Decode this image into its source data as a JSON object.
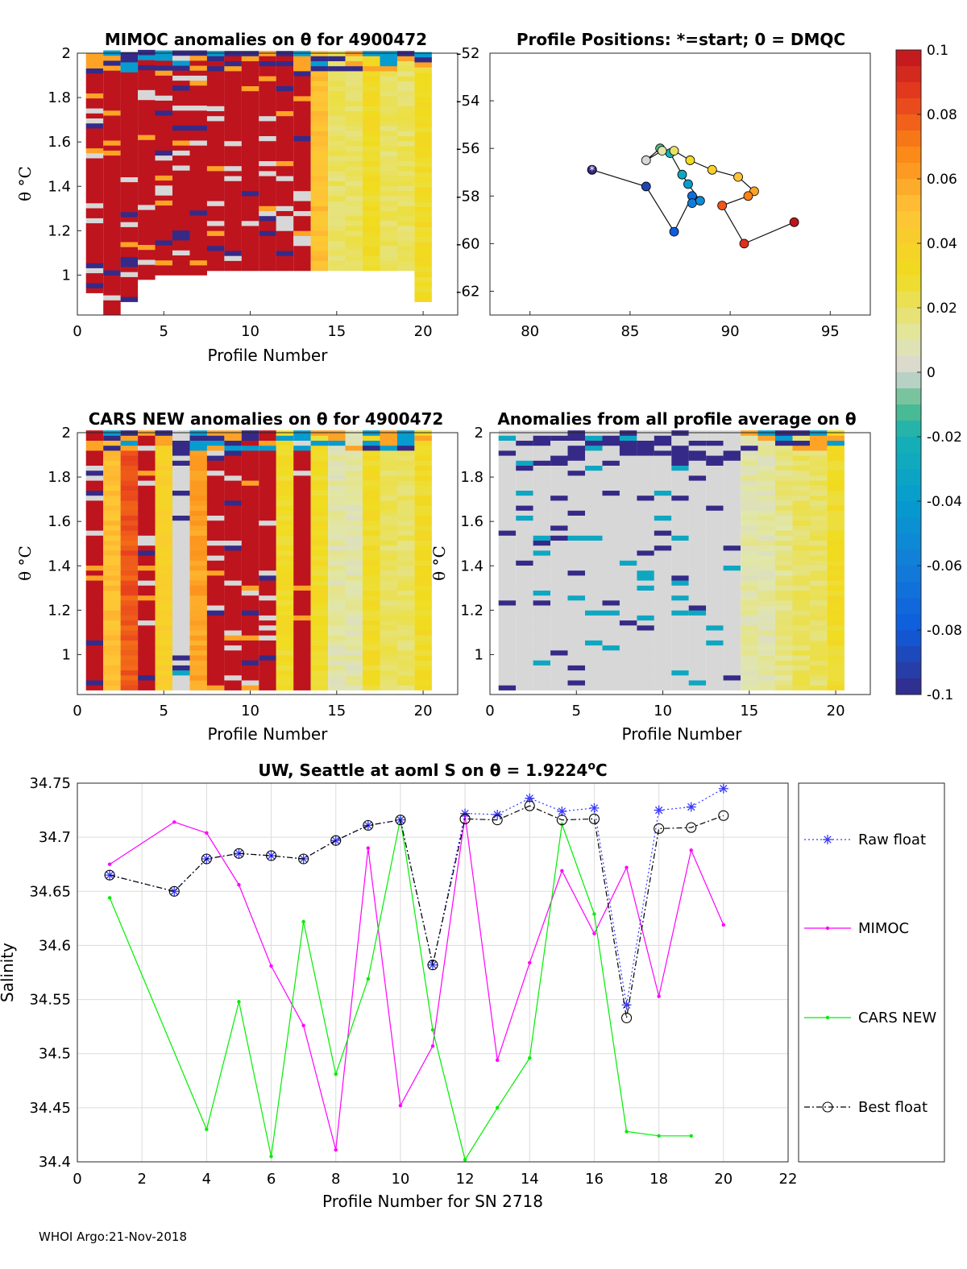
{
  "footer": "WHOI Argo:21-Nov-2018",
  "colorbar": {
    "ticks": [
      "0.1",
      "0.08",
      "0.06",
      "0.04",
      "0.02",
      "0",
      "-0.02",
      "-0.04",
      "-0.06",
      "-0.08",
      "-0.1"
    ],
    "range": [
      -0.1,
      0.1
    ]
  },
  "panels": {
    "mimoc": {
      "title": "MIMOC anomalies on θ  for 4900472",
      "xlabel": "Profile Number",
      "ylabel": "θ °C",
      "xticks": [
        "0",
        "5",
        "10",
        "15",
        "20"
      ],
      "yticks": [
        "1",
        "1.2",
        "1.4",
        "1.6",
        "1.8",
        "2"
      ],
      "xlim": [
        0,
        22
      ],
      "ylim": [
        0.82,
        2.0
      ]
    },
    "positions": {
      "title": "Profile Positions: *=start; 0 = DMQC",
      "xticks": [
        "80",
        "85",
        "90",
        "95"
      ],
      "yticks": [
        "-52",
        "-54",
        "-56",
        "-58",
        "-60",
        "-62"
      ],
      "xlim": [
        78,
        97
      ],
      "ylim": [
        -63,
        -52
      ]
    },
    "cars": {
      "title": "CARS NEW anomalies on θ for 4900472",
      "xlabel": "Profile Number",
      "ylabel": "θ °C",
      "xticks": [
        "0",
        "5",
        "10",
        "15",
        "20"
      ],
      "yticks": [
        "1",
        "1.2",
        "1.4",
        "1.6",
        "1.8",
        "2"
      ],
      "xlim": [
        0,
        22
      ],
      "ylim": [
        0.82,
        2.0
      ]
    },
    "allavg": {
      "title": "Anomalies from all profile average on θ",
      "xlabel": "Profile Number",
      "ylabel": "θ °C",
      "xticks": [
        "0",
        "5",
        "10",
        "15",
        "20"
      ],
      "yticks": [
        "1",
        "1.2",
        "1.4",
        "1.6",
        "1.8",
        "2"
      ],
      "xlim": [
        0,
        22
      ],
      "ylim": [
        0.82,
        2.0
      ]
    }
  },
  "chart_data": [
    {
      "id": "mimoc",
      "type": "heatmap",
      "title": "MIMOC anomalies on θ  for 4900472",
      "xlabel": "Profile Number",
      "ylabel": "θ °C",
      "profiles": [
        1,
        2,
        3,
        4,
        5,
        6,
        7,
        8,
        9,
        10,
        11,
        12,
        13,
        14,
        15,
        16,
        17,
        18,
        19,
        20
      ],
      "theta_min": [
        0.92,
        0.82,
        0.88,
        0.98,
        1.0,
        1.0,
        1.0,
        1.02,
        1.02,
        1.02,
        1.02,
        1.02,
        1.02,
        1.02,
        1.02,
        1.02,
        1.02,
        1.02,
        1.02,
        0.88
      ],
      "profile_mean_anomaly": [
        0.1,
        0.1,
        0.1,
        0.1,
        0.1,
        0.1,
        0.1,
        0.1,
        0.1,
        0.1,
        0.1,
        0.1,
        0.1,
        0.05,
        0.02,
        0.02,
        0.03,
        0.02,
        0.02,
        0.03
      ],
      "colorbar_range": [
        -0.1,
        0.1
      ]
    },
    {
      "id": "positions",
      "type": "scatter",
      "title": "Profile Positions: *=start; 0 = DMQC",
      "x": [
        83.1,
        85.8,
        87.2,
        88.1,
        88.1,
        88.5,
        87.9,
        87.6,
        87.0,
        86.5,
        85.8,
        86.6,
        87.2,
        88.0,
        89.1,
        90.4,
        91.2,
        90.9,
        89.6,
        90.7,
        93.2
      ],
      "y": [
        -56.9,
        -57.6,
        -59.5,
        -58.0,
        -58.3,
        -58.2,
        -57.5,
        -57.1,
        -56.2,
        -56.0,
        -56.5,
        -56.1,
        -56.1,
        -56.5,
        -56.9,
        -57.2,
        -57.8,
        -58.0,
        -58.4,
        -60.0,
        -59.1
      ],
      "start_marker": "*",
      "xlim": [
        78,
        97
      ],
      "ylim": [
        -63,
        -52
      ]
    },
    {
      "id": "cars",
      "type": "heatmap",
      "title": "CARS NEW anomalies on θ for 4900472",
      "xlabel": "Profile Number",
      "ylabel": "θ °C",
      "profiles": [
        1,
        2,
        3,
        4,
        5,
        6,
        7,
        8,
        9,
        10,
        11,
        12,
        13,
        14,
        15,
        16,
        17,
        18,
        19,
        20
      ],
      "profile_mean_anomaly": [
        0.1,
        0.05,
        0.08,
        0.1,
        0.04,
        0.0,
        0.06,
        0.1,
        0.1,
        0.1,
        0.1,
        0.03,
        0.1,
        0.03,
        0.01,
        0.01,
        0.03,
        0.02,
        0.02,
        0.03
      ],
      "colorbar_range": [
        -0.1,
        0.1
      ]
    },
    {
      "id": "allavg",
      "type": "heatmap",
      "title": "Anomalies from all profile average on θ",
      "xlabel": "Profile Number",
      "ylabel": "θ °C",
      "profiles": [
        1,
        2,
        3,
        4,
        5,
        6,
        7,
        8,
        9,
        10,
        11,
        12,
        13,
        14,
        15,
        16,
        17,
        18,
        19,
        20
      ],
      "profile_mean_anomaly": [
        0.0,
        0.0,
        0.0,
        0.0,
        0.0,
        0.0,
        0.0,
        0.0,
        0.0,
        0.0,
        0.0,
        0.0,
        0.0,
        0.0,
        0.01,
        0.01,
        0.015,
        0.02,
        0.02,
        0.03
      ],
      "colorbar_range": [
        -0.1,
        0.1
      ]
    },
    {
      "id": "salinity",
      "type": "line",
      "title": "UW, Seattle at aoml S on θ = 1.9224°C",
      "xlabel": "Profile Number for SN 2718",
      "ylabel": "Salinity",
      "xlim": [
        0,
        22
      ],
      "ylim": [
        34.4,
        34.75
      ],
      "xticks": [
        "0",
        "2",
        "4",
        "6",
        "8",
        "10",
        "12",
        "14",
        "16",
        "18",
        "20",
        "22"
      ],
      "yticks": [
        "34.4",
        "34.45",
        "34.5",
        "34.55",
        "34.6",
        "34.65",
        "34.7",
        "34.75"
      ],
      "series": [
        {
          "name": "Raw float",
          "color": "#3a3aff",
          "x": [
            1,
            3,
            4,
            5,
            6,
            7,
            8,
            9,
            10,
            11,
            12,
            13,
            14,
            15,
            16,
            17,
            18,
            19,
            20
          ],
          "y": [
            34.665,
            34.65,
            34.68,
            34.685,
            34.683,
            34.68,
            34.697,
            34.711,
            34.716,
            34.582,
            34.722,
            34.721,
            34.736,
            34.724,
            34.727,
            34.545,
            34.725,
            34.728,
            34.745
          ]
        },
        {
          "name": "MIMOC",
          "color": "#ff00ff",
          "x": [
            1,
            3,
            4,
            5,
            6,
            7,
            8,
            9,
            10,
            11,
            12,
            13,
            14,
            15,
            16,
            17,
            18,
            19,
            20
          ],
          "y": [
            34.675,
            34.714,
            34.704,
            34.656,
            34.581,
            34.526,
            34.411,
            34.69,
            34.452,
            34.507,
            34.72,
            34.494,
            34.584,
            34.669,
            34.611,
            34.672,
            34.553,
            34.688,
            34.619
          ]
        },
        {
          "name": "CARS NEW",
          "color": "#00ee00",
          "x": [
            1,
            4,
            5,
            6,
            7,
            8,
            9,
            10,
            11,
            12,
            13,
            14,
            15,
            16,
            17,
            18,
            19
          ],
          "y": [
            34.644,
            34.43,
            34.548,
            34.405,
            34.622,
            34.481,
            34.569,
            34.717,
            34.522,
            34.402,
            34.45,
            34.496,
            34.712,
            34.629,
            34.428,
            34.424,
            34.424
          ]
        },
        {
          "name": "Best float",
          "color": "#000000",
          "x": [
            1,
            3,
            4,
            5,
            6,
            7,
            8,
            9,
            10,
            11,
            12,
            13,
            14,
            15,
            16,
            17,
            18,
            19,
            20
          ],
          "y": [
            34.665,
            34.65,
            34.68,
            34.685,
            34.683,
            34.68,
            34.697,
            34.711,
            34.716,
            34.582,
            34.717,
            34.716,
            34.729,
            34.716,
            34.717,
            34.533,
            34.708,
            34.709,
            34.72
          ]
        }
      ],
      "legend": [
        "Raw float",
        "MIMOC",
        "CARS NEW",
        "Best float"
      ],
      "legend_position": "right"
    }
  ]
}
